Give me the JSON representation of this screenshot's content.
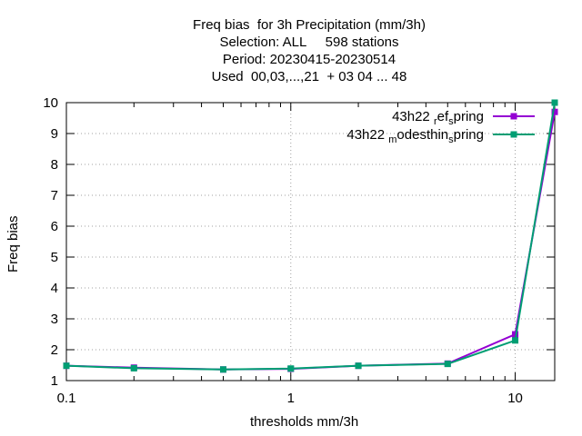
{
  "chart_data": {
    "type": "line",
    "title_lines": [
      "Freq bias  for 3h Precipitation (mm/3h)",
      "Selection: ALL     598 stations",
      "Period: 20230415-20230514",
      "Used  00,03,...,21  + 03 04 ... 48"
    ],
    "xlabel": "thresholds mm/3h",
    "ylabel": "Freq bias",
    "x_scale": "log",
    "xlim": [
      0.1,
      15
    ],
    "ylim": [
      1,
      10
    ],
    "x_ticks": [
      {
        "value": 0.1,
        "label": "0.1"
      },
      {
        "value": 1,
        "label": "1"
      },
      {
        "value": 10,
        "label": "10"
      }
    ],
    "y_ticks": [
      {
        "value": 1,
        "label": "1"
      },
      {
        "value": 2,
        "label": "2"
      },
      {
        "value": 3,
        "label": "3"
      },
      {
        "value": 4,
        "label": "4"
      },
      {
        "value": 5,
        "label": "5"
      },
      {
        "value": 6,
        "label": "6"
      },
      {
        "value": 7,
        "label": "7"
      },
      {
        "value": 8,
        "label": "8"
      },
      {
        "value": 9,
        "label": "9"
      },
      {
        "value": 10,
        "label": "10"
      }
    ],
    "grid": true,
    "legend_position": "top-right",
    "x": [
      0.1,
      0.2,
      0.5,
      1,
      2,
      5,
      10,
      15
    ],
    "series": [
      {
        "name_main": "43h22 ",
        "name_sub1": "r",
        "name_mid": "ef",
        "name_sub2": "s",
        "name_end": "pring",
        "color": "#9400d3",
        "values": [
          1.48,
          1.42,
          1.36,
          1.38,
          1.48,
          1.55,
          2.5,
          9.7
        ]
      },
      {
        "name_main": "43h22 ",
        "name_sub1": "m",
        "name_mid": "odesthin",
        "name_sub2": "s",
        "name_end": "pring",
        "color": "#009e73",
        "values": [
          1.48,
          1.4,
          1.36,
          1.39,
          1.48,
          1.54,
          2.3,
          10.0
        ]
      }
    ]
  }
}
